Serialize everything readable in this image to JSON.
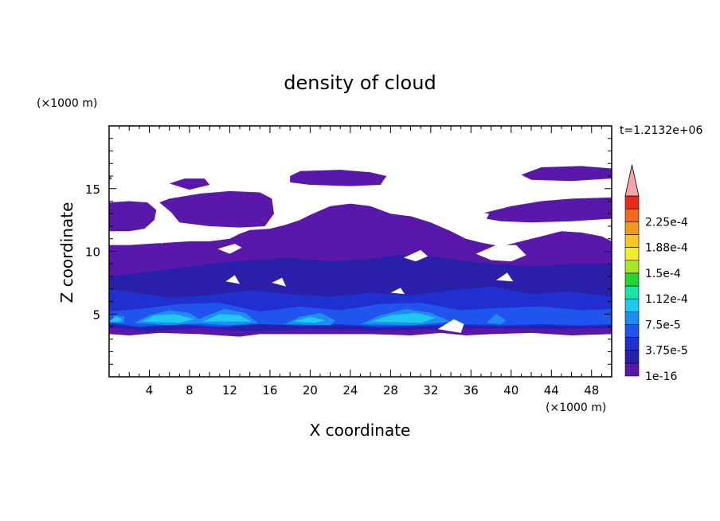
{
  "chart_data": {
    "type": "heatmap",
    "title": "density of cloud",
    "xlabel": "X coordinate",
    "ylabel": "Z coordinate",
    "x_unit": "(×1000 m)",
    "y_unit": "(×1000 m)",
    "time_label": "t=1.2132e+06",
    "xlim": [
      0,
      50
    ],
    "ylim": [
      0,
      20
    ],
    "x_ticks": [
      4,
      8,
      12,
      16,
      20,
      24,
      28,
      32,
      36,
      40,
      44,
      48
    ],
    "y_ticks": [
      5,
      10,
      15
    ],
    "colorbar": {
      "levels": [
        {
          "value": "1e-16",
          "color": "#5a18aa",
          "label": "1e-16"
        },
        {
          "value": "1.875e-5",
          "color": "#2a1fa8",
          "label": ""
        },
        {
          "value": "3.75e-5",
          "color": "#1f2fd0",
          "label": "3.75e-5"
        },
        {
          "value": "5.625e-5",
          "color": "#1f55ee",
          "label": ""
        },
        {
          "value": "7.5e-5",
          "color": "#1f8cf0",
          "label": "7.5e-5"
        },
        {
          "value": "9.375e-5",
          "color": "#1fc8f0",
          "label": ""
        },
        {
          "value": "1.12e-4",
          "color": "#18e6a8",
          "label": "1.12e-4"
        },
        {
          "value": "1.31e-4",
          "color": "#20d830",
          "label": ""
        },
        {
          "value": "1.5e-4",
          "color": "#a8e820",
          "label": "1.5e-4"
        },
        {
          "value": "1.69e-4",
          "color": "#f0f020",
          "label": ""
        },
        {
          "value": "1.88e-4",
          "color": "#f8c818",
          "label": "1.88e-4"
        },
        {
          "value": "2.06e-4",
          "color": "#f89818",
          "label": ""
        },
        {
          "value": "2.25e-4",
          "color": "#f86818",
          "label": "2.25e-4"
        },
        {
          "value": "2.44e-4",
          "color": "#f02818",
          "label": ""
        }
      ],
      "overflow_color": "#f4a6a6"
    },
    "regions": [
      {
        "level": 0,
        "polygon": [
          [
            0,
            3.4
          ],
          [
            2,
            3.3
          ],
          [
            5,
            3.5
          ],
          [
            9,
            3.4
          ],
          [
            13,
            3.2
          ],
          [
            15,
            3.4
          ],
          [
            20,
            3.4
          ],
          [
            26,
            3.4
          ],
          [
            30,
            3.3
          ],
          [
            33,
            3.5
          ],
          [
            35.5,
            3.3
          ],
          [
            38,
            3.4
          ],
          [
            42,
            3.5
          ],
          [
            46,
            3.3
          ],
          [
            50,
            3.4
          ],
          [
            50,
            10.8
          ],
          [
            49,
            11.2
          ],
          [
            47,
            11.5
          ],
          [
            45,
            11.6
          ],
          [
            43,
            11.2
          ],
          [
            41,
            10.8
          ],
          [
            39,
            10.4
          ],
          [
            37,
            10.7
          ],
          [
            35.5,
            11
          ],
          [
            34,
            11.6
          ],
          [
            32,
            12.3
          ],
          [
            30,
            12.8
          ],
          [
            28,
            13
          ],
          [
            26,
            13.6
          ],
          [
            24,
            13.8
          ],
          [
            22,
            13.6
          ],
          [
            20,
            12.9
          ],
          [
            19,
            12.5
          ],
          [
            17.5,
            12.1
          ],
          [
            16,
            11.8
          ],
          [
            14,
            11.7
          ],
          [
            13,
            11.4
          ],
          [
            12,
            11
          ],
          [
            10,
            10.8
          ],
          [
            8,
            10.8
          ],
          [
            6,
            10.7
          ],
          [
            4,
            10.6
          ],
          [
            2,
            10.5
          ],
          [
            0,
            10.5
          ]
        ]
      },
      {
        "level": 0,
        "polygon": [
          [
            0,
            11.6
          ],
          [
            2,
            11.6
          ],
          [
            3.5,
            11.8
          ],
          [
            4.5,
            12.5
          ],
          [
            4.7,
            13.3
          ],
          [
            3.8,
            13.9
          ],
          [
            2,
            14.0
          ],
          [
            0,
            13.9
          ]
        ]
      },
      {
        "level": 0,
        "polygon": [
          [
            6,
            14.2
          ],
          [
            9,
            14.6
          ],
          [
            12,
            14.8
          ],
          [
            15,
            14.7
          ],
          [
            16.2,
            14.2
          ],
          [
            16.4,
            13
          ],
          [
            15.5,
            12
          ],
          [
            13,
            11.9
          ],
          [
            10,
            12
          ],
          [
            7,
            12.3
          ],
          [
            6.2,
            13.1
          ],
          [
            5,
            13.9
          ]
        ]
      },
      {
        "level": 0,
        "polygon": [
          [
            6,
            15.4
          ],
          [
            7.5,
            15.8
          ],
          [
            9.5,
            15.8
          ],
          [
            10,
            15.3
          ],
          [
            8,
            14.9
          ]
        ]
      },
      {
        "level": 0,
        "polygon": [
          [
            18,
            16
          ],
          [
            19,
            16.4
          ],
          [
            23,
            16.5
          ],
          [
            26,
            16.3
          ],
          [
            27.6,
            16
          ],
          [
            27,
            15.3
          ],
          [
            24,
            15.2
          ],
          [
            20,
            15.3
          ],
          [
            18,
            15.5
          ]
        ]
      },
      {
        "level": 0,
        "polygon": [
          [
            41,
            16.1
          ],
          [
            43,
            16.7
          ],
          [
            47,
            16.8
          ],
          [
            50,
            16.6
          ],
          [
            50,
            15.8
          ],
          [
            46,
            15.6
          ],
          [
            42,
            15.7
          ]
        ]
      },
      {
        "level": 0,
        "polygon": [
          [
            36,
            12.8
          ],
          [
            40,
            13.6
          ],
          [
            43,
            14
          ],
          [
            46,
            14.2
          ],
          [
            50,
            14.3
          ],
          [
            50,
            12.6
          ],
          [
            46,
            12.4
          ],
          [
            42,
            12.3
          ],
          [
            39,
            12.4
          ]
        ]
      },
      {
        "level": 0,
        "polygon": [
          [
            0,
            16
          ],
          [
            0.3,
            15.8
          ],
          [
            0,
            15.7
          ]
        ]
      },
      {
        "level": 1,
        "polygon": [
          [
            0,
            4
          ],
          [
            4,
            3.6
          ],
          [
            9,
            3.9
          ],
          [
            14,
            3.6
          ],
          [
            20,
            3.8
          ],
          [
            26,
            3.7
          ],
          [
            33,
            3.8
          ],
          [
            38,
            3.9
          ],
          [
            44,
            3.8
          ],
          [
            50,
            3.9
          ],
          [
            50,
            9
          ],
          [
            46,
            9
          ],
          [
            42,
            8.8
          ],
          [
            38,
            9
          ],
          [
            34,
            9.4
          ],
          [
            30,
            9.8
          ],
          [
            26,
            9.4
          ],
          [
            22,
            9.2
          ],
          [
            18,
            9.5
          ],
          [
            14,
            9.3
          ],
          [
            10,
            9
          ],
          [
            6,
            8.6
          ],
          [
            2,
            8.2
          ],
          [
            0,
            8
          ]
        ]
      },
      {
        "level": 2,
        "polygon": [
          [
            0,
            4.2
          ],
          [
            3,
            3.9
          ],
          [
            7,
            4.1
          ],
          [
            11,
            3.9
          ],
          [
            15,
            4.2
          ],
          [
            19,
            4
          ],
          [
            23,
            4.1
          ],
          [
            27,
            3.9
          ],
          [
            31,
            4.0
          ],
          [
            35,
            4.1
          ],
          [
            39,
            4.0
          ],
          [
            43,
            4.1
          ],
          [
            47,
            4.0
          ],
          [
            50,
            4.1
          ],
          [
            50,
            6.4
          ],
          [
            46,
            6.8
          ],
          [
            42,
            6.6
          ],
          [
            38,
            7.2
          ],
          [
            34,
            6.9
          ],
          [
            30,
            6.5
          ],
          [
            26,
            6.7
          ],
          [
            22,
            6.4
          ],
          [
            18,
            6.6
          ],
          [
            14,
            6.9
          ],
          [
            10,
            6.5
          ],
          [
            6,
            6.3
          ],
          [
            2,
            6.8
          ],
          [
            0,
            7
          ]
        ]
      },
      {
        "level": 3,
        "polygon": [
          [
            0,
            4.3
          ],
          [
            3,
            4.0
          ],
          [
            7,
            4.2
          ],
          [
            11,
            4.0
          ],
          [
            15,
            4.2
          ],
          [
            19,
            4.1
          ],
          [
            23,
            4.2
          ],
          [
            27,
            4.0
          ],
          [
            31,
            4.1
          ],
          [
            35,
            4.2
          ],
          [
            39,
            4.1
          ],
          [
            43,
            4.2
          ],
          [
            47,
            4.1
          ],
          [
            50,
            4.2
          ],
          [
            50,
            5.4
          ],
          [
            47,
            5.3
          ],
          [
            43,
            5.6
          ],
          [
            39,
            5.5
          ],
          [
            35,
            5.3
          ],
          [
            31,
            5.9
          ],
          [
            27,
            5.8
          ],
          [
            23,
            5.3
          ],
          [
            19,
            5.6
          ],
          [
            15,
            5.2
          ],
          [
            11,
            5.9
          ],
          [
            7,
            5.8
          ],
          [
            3,
            5.4
          ],
          [
            0,
            5.2
          ]
        ]
      },
      {
        "level": 4,
        "polygon": [
          [
            2.5,
            4.3
          ],
          [
            4,
            4.9
          ],
          [
            6,
            5.3
          ],
          [
            8,
            5.1
          ],
          [
            9.5,
            4.3
          ],
          [
            6,
            4.1
          ]
        ]
      },
      {
        "level": 4,
        "polygon": [
          [
            8.3,
            4.3
          ],
          [
            9.5,
            4.8
          ],
          [
            11.5,
            5.4
          ],
          [
            13.5,
            5.1
          ],
          [
            14.8,
            4.3
          ],
          [
            12,
            4.1
          ]
        ]
      },
      {
        "level": 4,
        "polygon": [
          [
            17.5,
            4.2
          ],
          [
            19,
            4.8
          ],
          [
            21,
            5.1
          ],
          [
            22.5,
            4.5
          ],
          [
            22,
            4.1
          ]
        ]
      },
      {
        "level": 4,
        "polygon": [
          [
            25,
            4.2
          ],
          [
            27,
            4.9
          ],
          [
            29.5,
            5.4
          ],
          [
            32,
            5.1
          ],
          [
            34,
            4.4
          ],
          [
            30,
            4.1
          ]
        ]
      },
      {
        "level": 4,
        "polygon": [
          [
            0,
            4.3
          ],
          [
            0.5,
            4.9
          ],
          [
            1.5,
            4.8
          ],
          [
            1.5,
            4.3
          ]
        ]
      },
      {
        "level": 4,
        "polygon": [
          [
            37.5,
            4.3
          ],
          [
            38.5,
            5
          ],
          [
            39.5,
            4.5
          ],
          [
            39,
            4.2
          ]
        ]
      },
      {
        "level": 5,
        "polygon": [
          [
            3.2,
            4.4
          ],
          [
            4.5,
            4.9
          ],
          [
            6.5,
            5
          ],
          [
            8.5,
            4.6
          ],
          [
            7,
            4.3
          ]
        ]
      },
      {
        "level": 5,
        "polygon": [
          [
            9.3,
            4.4
          ],
          [
            11,
            5
          ],
          [
            13,
            4.9
          ],
          [
            14.2,
            4.4
          ]
        ]
      },
      {
        "level": 5,
        "polygon": [
          [
            26,
            4.4
          ],
          [
            28,
            4.9
          ],
          [
            30.5,
            5.1
          ],
          [
            32.5,
            4.7
          ],
          [
            31,
            4.3
          ]
        ]
      },
      {
        "level": 5,
        "polygon": [
          [
            18.3,
            4.4
          ],
          [
            20,
            4.8
          ],
          [
            21.5,
            4.5
          ],
          [
            20.5,
            4.3
          ]
        ]
      },
      {
        "level": 5,
        "polygon": [
          [
            0,
            4.4
          ],
          [
            0.7,
            4.8
          ],
          [
            1.3,
            4.6
          ],
          [
            1,
            4.4
          ]
        ]
      }
    ],
    "holes": [
      {
        "polygon": [
          [
            34.5,
            12.7
          ],
          [
            35.5,
            12.2
          ],
          [
            37.5,
            12.5
          ],
          [
            37.8,
            13
          ],
          [
            36.2,
            13.2
          ]
        ]
      },
      {
        "polygon": [
          [
            36.5,
            9.8
          ],
          [
            38.5,
            10.5
          ],
          [
            40.5,
            10.5
          ],
          [
            41.5,
            9.7
          ],
          [
            40,
            9.2
          ],
          [
            38,
            9.3
          ]
        ]
      },
      {
        "polygon": [
          [
            10.8,
            10.2
          ],
          [
            12.5,
            10.6
          ],
          [
            13.2,
            10.3
          ],
          [
            12,
            9.8
          ]
        ]
      },
      {
        "polygon": [
          [
            4.6,
            10.9
          ],
          [
            5.6,
            11.1
          ],
          [
            5.3,
            10.6
          ]
        ]
      },
      {
        "polygon": [
          [
            29.3,
            9.5
          ],
          [
            31,
            10.1
          ],
          [
            31.7,
            9.6
          ],
          [
            30.5,
            9.2
          ]
        ]
      },
      {
        "polygon": [
          [
            11.6,
            7.6
          ],
          [
            12.5,
            8.1
          ],
          [
            13,
            7.4
          ]
        ]
      },
      {
        "polygon": [
          [
            16.2,
            7.5
          ],
          [
            17.2,
            7.9
          ],
          [
            17.6,
            7.2
          ]
        ]
      },
      {
        "polygon": [
          [
            32.7,
            3.8
          ],
          [
            34.3,
            4.6
          ],
          [
            35.3,
            4.2
          ],
          [
            35,
            3.5
          ]
        ]
      },
      {
        "polygon": [
          [
            28,
            6.7
          ],
          [
            29,
            7.1
          ],
          [
            29.4,
            6.6
          ]
        ]
      },
      {
        "polygon": [
          [
            38.5,
            7.7
          ],
          [
            39.6,
            8.3
          ],
          [
            40.2,
            7.6
          ]
        ]
      }
    ]
  }
}
